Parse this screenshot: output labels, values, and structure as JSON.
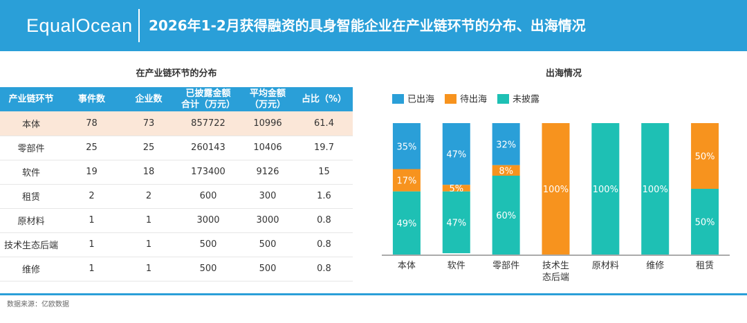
{
  "header": {
    "logo": "EqualOcean",
    "title": "2026年1-2月获得融资的具身智能企业在产业链环节的分布、出海情况"
  },
  "table_section": {
    "title": "在产业链环节的分布",
    "columns": [
      "产业链环节",
      "事件数",
      "企业数",
      "已披露金额\n合计（万元）",
      "平均金额\n（万元）",
      "占比（%）"
    ],
    "rows": [
      [
        "本体",
        "78",
        "73",
        "857722",
        "10996",
        "61.4"
      ],
      [
        "零部件",
        "25",
        "25",
        "260143",
        "10406",
        "19.7"
      ],
      [
        "软件",
        "19",
        "18",
        "173400",
        "9126",
        "15"
      ],
      [
        "租赁",
        "2",
        "2",
        "600",
        "300",
        "1.6"
      ],
      [
        "原材料",
        "1",
        "1",
        "3000",
        "3000",
        "0.8"
      ],
      [
        "技术生态后端",
        "1",
        "1",
        "500",
        "500",
        "0.8"
      ],
      [
        "维修",
        "1",
        "1",
        "500",
        "500",
        "0.8"
      ]
    ],
    "highlight_row": 0,
    "highlight_color": "#fbe7d8"
  },
  "chart_section": {
    "title": "出海情况"
  },
  "chart_data": {
    "type": "bar",
    "stacked": true,
    "percent_stacked": true,
    "categories": [
      "本体",
      "软件",
      "零部件",
      "技术生\n态后端",
      "原材料",
      "维修",
      "租赁"
    ],
    "series": [
      {
        "name": "已出海",
        "color": "#2a9fd8",
        "values": [
          35,
          47,
          32,
          0,
          0,
          0,
          0
        ]
      },
      {
        "name": "待出海",
        "color": "#f7931e",
        "values": [
          17,
          5,
          8,
          100,
          0,
          0,
          50
        ]
      },
      {
        "name": "未披露",
        "color": "#1ec0b4",
        "values": [
          49,
          47,
          60,
          0,
          100,
          100,
          50
        ]
      }
    ],
    "value_labels": [
      [
        "35%",
        "47%",
        "32%",
        "",
        "",
        "",
        ""
      ],
      [
        "17%",
        "5%",
        "8%",
        "100%",
        "",
        "",
        "50%"
      ],
      [
        "49%",
        "47%",
        "60%",
        "",
        "100%",
        "100%",
        "50%"
      ]
    ],
    "legend_position": "top-left",
    "grid": false
  },
  "footer": {
    "source": "数据来源：亿欧数据"
  },
  "colors": {
    "accent": "#2a9fd8",
    "orange": "#f7931e",
    "teal": "#1ec0b4"
  }
}
